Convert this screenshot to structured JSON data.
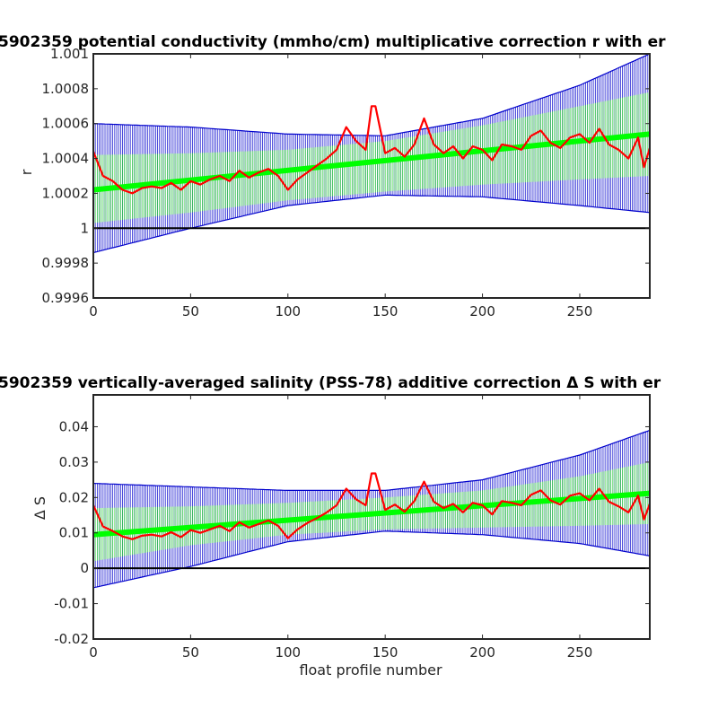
{
  "chart_data": [
    {
      "type": "line",
      "title": "5902359 potential conductivity (mmho/cm) multiplicative correction r with er",
      "xlabel": "",
      "ylabel": "r",
      "xlim": [
        0,
        286
      ],
      "ylim": [
        0.9996,
        1.001
      ],
      "xticks": [
        "0",
        "50",
        "100",
        "150",
        "200",
        "250"
      ],
      "yticks": [
        "0.9996",
        "0.9998",
        "1",
        "1.0002",
        "1.0004",
        "1.0006",
        "1.0008",
        "1.001"
      ],
      "grid": false,
      "reference_line": 1.0,
      "colors": {
        "raw": "#ff0000",
        "fit": "#00ff00",
        "error_wide": "#0000cc",
        "error_narrow": "#33dd33",
        "reference": "#000000"
      },
      "fit": {
        "x": [
          0,
          286
        ],
        "y": [
          1.00022,
          1.00054
        ]
      },
      "error_narrow": {
        "x": [
          0,
          50,
          100,
          150,
          200,
          250,
          286
        ],
        "lower": [
          1.00003,
          1.00009,
          1.00016,
          1.00021,
          1.00025,
          1.00028,
          1.0003
        ],
        "upper": [
          1.00042,
          1.00043,
          1.00045,
          1.0005,
          1.00059,
          1.0007,
          1.00078
        ]
      },
      "error_wide": {
        "x": [
          0,
          50,
          100,
          150,
          200,
          250,
          286
        ],
        "lower": [
          0.99986,
          1.0,
          1.00013,
          1.00019,
          1.00018,
          1.00013,
          1.00009
        ],
        "upper": [
          1.0006,
          1.00058,
          1.00054,
          1.00053,
          1.00063,
          1.00082,
          1.001
        ]
      },
      "series": [
        {
          "x": [
            0,
            5,
            10,
            15,
            20,
            25,
            30,
            35,
            40,
            45,
            50,
            55,
            60,
            65,
            70,
            75,
            80,
            85,
            90,
            95,
            100,
            105,
            110,
            115,
            120,
            125,
            130,
            135,
            140,
            143,
            145,
            150,
            155,
            160,
            165,
            170,
            175,
            180,
            185,
            190,
            195,
            200,
            205,
            210,
            215,
            220,
            225,
            230,
            235,
            240,
            245,
            250,
            255,
            260,
            265,
            270,
            275,
            280,
            283,
            286
          ],
          "y": [
            1.00044,
            1.0003,
            1.00027,
            1.00022,
            1.0002,
            1.00023,
            1.00024,
            1.00023,
            1.00026,
            1.00022,
            1.00027,
            1.00025,
            1.00028,
            1.0003,
            1.00027,
            1.00033,
            1.00029,
            1.00032,
            1.00034,
            1.0003,
            1.00022,
            1.00028,
            1.00032,
            1.00036,
            1.0004,
            1.00045,
            1.00058,
            1.0005,
            1.00045,
            1.0007,
            1.0007,
            1.00043,
            1.00046,
            1.00041,
            1.00048,
            1.00063,
            1.00048,
            1.00043,
            1.00047,
            1.0004,
            1.00047,
            1.00045,
            1.00039,
            1.00048,
            1.00047,
            1.00045,
            1.00053,
            1.00056,
            1.00049,
            1.00046,
            1.00052,
            1.00054,
            1.00049,
            1.00057,
            1.00048,
            1.00045,
            1.0004,
            1.00052,
            1.00035,
            1.00046
          ]
        }
      ]
    },
    {
      "type": "line",
      "title": "5902359 vertically-averaged salinity (PSS-78) additive correction Δ S with er",
      "xlabel": "float profile number",
      "ylabel": "Δ S",
      "xlim": [
        0,
        286
      ],
      "ylim": [
        -0.02,
        0.049
      ],
      "xticks": [
        "0",
        "50",
        "100",
        "150",
        "200",
        "250"
      ],
      "yticks": [
        "-0.02",
        "-0.01",
        "0",
        "0.01",
        "0.02",
        "0.03",
        "0.04"
      ],
      "grid": false,
      "reference_line": 0.0,
      "colors": {
        "raw": "#ff0000",
        "fit": "#00ff00",
        "error_wide": "#0000cc",
        "error_narrow": "#33dd33",
        "reference": "#000000"
      },
      "fit": {
        "x": [
          0,
          286
        ],
        "y": [
          0.0095,
          0.0212
        ]
      },
      "error_narrow": {
        "x": [
          0,
          50,
          100,
          150,
          200,
          250,
          286
        ],
        "lower": [
          0.002,
          0.0065,
          0.0095,
          0.011,
          0.0115,
          0.012,
          0.0125
        ],
        "upper": [
          0.017,
          0.0175,
          0.0185,
          0.02,
          0.022,
          0.026,
          0.03
        ]
      },
      "error_wide": {
        "x": [
          0,
          50,
          100,
          150,
          200,
          250,
          286
        ],
        "lower": [
          -0.0055,
          0.0005,
          0.0075,
          0.0105,
          0.0095,
          0.007,
          0.0035
        ],
        "upper": [
          0.024,
          0.023,
          0.022,
          0.022,
          0.025,
          0.032,
          0.039
        ]
      },
      "series": [
        {
          "x": [
            0,
            5,
            10,
            15,
            20,
            25,
            30,
            35,
            40,
            45,
            50,
            55,
            60,
            65,
            70,
            75,
            80,
            85,
            90,
            95,
            100,
            105,
            110,
            115,
            120,
            125,
            130,
            135,
            140,
            143,
            145,
            150,
            155,
            160,
            165,
            170,
            175,
            180,
            185,
            190,
            195,
            200,
            205,
            210,
            215,
            220,
            225,
            230,
            235,
            240,
            245,
            250,
            255,
            260,
            265,
            270,
            275,
            280,
            283,
            286
          ],
          "y": [
            0.0178,
            0.0118,
            0.0105,
            0.009,
            0.0082,
            0.0092,
            0.0095,
            0.009,
            0.0102,
            0.0088,
            0.0108,
            0.01,
            0.011,
            0.012,
            0.0105,
            0.013,
            0.0115,
            0.0125,
            0.0135,
            0.012,
            0.0085,
            0.011,
            0.0128,
            0.0142,
            0.0158,
            0.0178,
            0.0225,
            0.0195,
            0.0178,
            0.0268,
            0.0268,
            0.0165,
            0.018,
            0.016,
            0.019,
            0.0245,
            0.0188,
            0.017,
            0.0182,
            0.0158,
            0.0185,
            0.0178,
            0.0152,
            0.019,
            0.0185,
            0.0178,
            0.0208,
            0.022,
            0.0192,
            0.018,
            0.0205,
            0.0212,
            0.0192,
            0.0225,
            0.0188,
            0.0175,
            0.0158,
            0.0205,
            0.0138,
            0.0182
          ]
        }
      ]
    }
  ]
}
